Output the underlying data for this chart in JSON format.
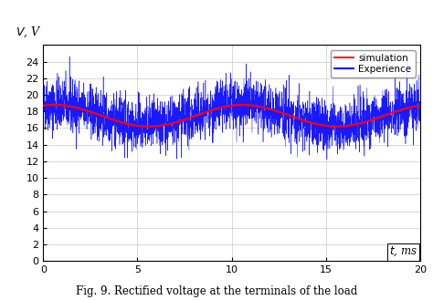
{
  "title": "Fig. 9. Rectified voltage at the terminals of the load",
  "ylabel": "V, V",
  "xlabel": "t, ms",
  "xlim": [
    0,
    20
  ],
  "ylim": [
    0,
    26
  ],
  "yticks": [
    0,
    2,
    4,
    6,
    8,
    10,
    12,
    14,
    16,
    18,
    20,
    22,
    24
  ],
  "xticks": [
    0,
    5,
    10,
    15,
    20
  ],
  "simulation_color": "#ff0000",
  "experience_color": "#0000ff",
  "background_color": "#ffffff",
  "grid_color": "#c8c8c8",
  "sim_mean": 17.5,
  "sim_amplitude": 1.3,
  "sim_freq": 0.1,
  "sim_phase": 1.2,
  "noise_std": 1.55,
  "num_noise_points": 3000,
  "legend_sim": "simulation",
  "legend_exp": "Experience",
  "xlabel_boxed": true
}
